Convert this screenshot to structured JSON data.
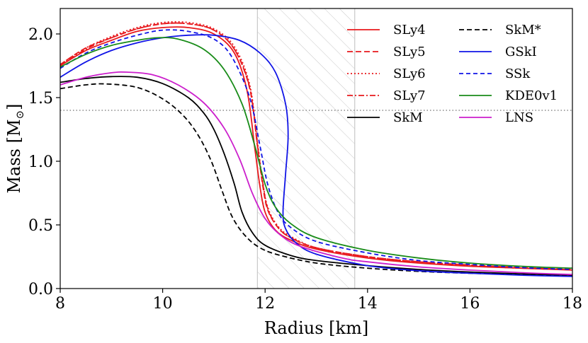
{
  "chart_data": {
    "type": "line",
    "xlabel": "Radius [km]",
    "ylabel": "Mass [M",
    "ylabel_sub": "⊙",
    "ylabel_close": "]",
    "xlim": [
      8,
      18
    ],
    "ylim": [
      0,
      2.2
    ],
    "xticks": [
      8,
      10,
      12,
      14,
      16,
      18
    ],
    "xtick_labels": [
      "8",
      "10",
      "12",
      "14",
      "16",
      "18"
    ],
    "yticks": [
      0,
      0.5,
      1.0,
      1.5,
      2.0
    ],
    "ytick_labels": [
      "0.0",
      "0.5",
      "1.0",
      "1.5",
      "2.0"
    ],
    "reference_line": {
      "y": 1.4,
      "color": "#888888",
      "style": "dotted"
    },
    "shaded_band": {
      "x": [
        11.85,
        13.75
      ],
      "hatch": "diagonal"
    },
    "legend_position": "top-right",
    "series": [
      {
        "name": "SLy4",
        "color": "#e8191d",
        "dash": "solid",
        "points": [
          [
            8,
            1.75
          ],
          [
            8.5,
            1.87
          ],
          [
            9,
            1.95
          ],
          [
            9.5,
            2.02
          ],
          [
            10,
            2.05
          ],
          [
            10.5,
            2.05
          ],
          [
            11,
            2.0
          ],
          [
            11.4,
            1.85
          ],
          [
            11.65,
            1.55
          ],
          [
            11.8,
            1.1
          ],
          [
            11.9,
            0.8
          ],
          [
            12.0,
            0.6
          ],
          [
            12.2,
            0.46
          ],
          [
            12.5,
            0.38
          ],
          [
            13,
            0.31
          ],
          [
            14,
            0.24
          ],
          [
            15,
            0.2
          ],
          [
            16,
            0.175
          ],
          [
            17,
            0.16
          ],
          [
            18,
            0.145
          ]
        ]
      },
      {
        "name": "SLy5",
        "color": "#e8191d",
        "dash": "8,4",
        "points": [
          [
            8,
            1.76
          ],
          [
            8.5,
            1.89
          ],
          [
            9,
            1.97
          ],
          [
            9.5,
            2.04
          ],
          [
            10,
            2.08
          ],
          [
            10.5,
            2.08
          ],
          [
            11,
            2.03
          ],
          [
            11.4,
            1.88
          ],
          [
            11.7,
            1.57
          ],
          [
            11.85,
            1.12
          ],
          [
            11.95,
            0.82
          ],
          [
            12.05,
            0.62
          ],
          [
            12.25,
            0.48
          ],
          [
            12.5,
            0.4
          ],
          [
            13,
            0.32
          ],
          [
            14,
            0.25
          ],
          [
            15,
            0.21
          ],
          [
            16,
            0.185
          ],
          [
            17,
            0.165
          ],
          [
            18,
            0.15
          ]
        ]
      },
      {
        "name": "SLy6",
        "color": "#e8191d",
        "dash": "2,3",
        "points": [
          [
            8,
            1.76
          ],
          [
            8.5,
            1.89
          ],
          [
            9,
            1.98
          ],
          [
            9.5,
            2.05
          ],
          [
            10,
            2.09
          ],
          [
            10.5,
            2.09
          ],
          [
            11,
            2.04
          ],
          [
            11.4,
            1.9
          ],
          [
            11.7,
            1.6
          ],
          [
            11.85,
            1.15
          ],
          [
            11.95,
            0.85
          ],
          [
            12.05,
            0.64
          ],
          [
            12.25,
            0.49
          ],
          [
            12.5,
            0.41
          ],
          [
            13,
            0.32
          ],
          [
            14,
            0.25
          ],
          [
            15,
            0.21
          ],
          [
            16,
            0.18
          ],
          [
            17,
            0.16
          ],
          [
            18,
            0.15
          ]
        ]
      },
      {
        "name": "SLy7",
        "color": "#e8191d",
        "dash": "8,3,2,3",
        "points": [
          [
            8,
            1.75
          ],
          [
            8.5,
            1.88
          ],
          [
            9,
            1.97
          ],
          [
            9.5,
            2.04
          ],
          [
            10,
            2.08
          ],
          [
            10.5,
            2.08
          ],
          [
            11,
            2.03
          ],
          [
            11.4,
            1.88
          ],
          [
            11.7,
            1.58
          ],
          [
            11.85,
            1.13
          ],
          [
            11.95,
            0.84
          ],
          [
            12.05,
            0.63
          ],
          [
            12.25,
            0.48
          ],
          [
            12.5,
            0.4
          ],
          [
            13,
            0.32
          ],
          [
            14,
            0.25
          ],
          [
            15,
            0.21
          ],
          [
            16,
            0.18
          ],
          [
            17,
            0.16
          ],
          [
            18,
            0.148
          ]
        ]
      },
      {
        "name": "SkM",
        "color": "#000000",
        "dash": "solid",
        "points": [
          [
            8,
            1.62
          ],
          [
            8.5,
            1.65
          ],
          [
            9,
            1.665
          ],
          [
            9.5,
            1.66
          ],
          [
            10,
            1.61
          ],
          [
            10.5,
            1.5
          ],
          [
            10.8,
            1.38
          ],
          [
            11,
            1.25
          ],
          [
            11.2,
            1.06
          ],
          [
            11.4,
            0.82
          ],
          [
            11.55,
            0.6
          ],
          [
            11.75,
            0.44
          ],
          [
            12,
            0.34
          ],
          [
            12.5,
            0.26
          ],
          [
            13,
            0.22
          ],
          [
            14,
            0.18
          ],
          [
            15,
            0.15
          ],
          [
            16,
            0.13
          ],
          [
            17,
            0.115
          ],
          [
            18,
            0.105
          ]
        ]
      },
      {
        "name": "SkM*",
        "color": "#000000",
        "dash": "7,4",
        "points": [
          [
            8,
            1.57
          ],
          [
            8.5,
            1.6
          ],
          [
            8.9,
            1.607
          ],
          [
            9.5,
            1.58
          ],
          [
            10,
            1.49
          ],
          [
            10.4,
            1.36
          ],
          [
            10.7,
            1.2
          ],
          [
            10.95,
            1.0
          ],
          [
            11.15,
            0.78
          ],
          [
            11.35,
            0.57
          ],
          [
            11.6,
            0.42
          ],
          [
            11.9,
            0.32
          ],
          [
            12.3,
            0.26
          ],
          [
            13,
            0.2
          ],
          [
            14,
            0.16
          ],
          [
            15,
            0.135
          ],
          [
            16,
            0.12
          ],
          [
            17,
            0.11
          ],
          [
            18,
            0.1
          ]
        ]
      },
      {
        "name": "GSkI",
        "color": "#1014e6",
        "dash": "solid",
        "points": [
          [
            8,
            1.66
          ],
          [
            8.5,
            1.78
          ],
          [
            9,
            1.87
          ],
          [
            9.5,
            1.93
          ],
          [
            10,
            1.97
          ],
          [
            10.5,
            1.99
          ],
          [
            11,
            1.99
          ],
          [
            11.5,
            1.95
          ],
          [
            11.9,
            1.85
          ],
          [
            12.2,
            1.7
          ],
          [
            12.4,
            1.45
          ],
          [
            12.45,
            1.2
          ],
          [
            12.4,
            0.9
          ],
          [
            12.35,
            0.6
          ],
          [
            12.4,
            0.47
          ],
          [
            12.6,
            0.36
          ],
          [
            13,
            0.27
          ],
          [
            14,
            0.18
          ],
          [
            15,
            0.14
          ],
          [
            16,
            0.12
          ],
          [
            17,
            0.105
          ],
          [
            18,
            0.095
          ]
        ]
      },
      {
        "name": "SSk",
        "color": "#1014e6",
        "dash": "6,4",
        "points": [
          [
            8,
            1.73
          ],
          [
            8.5,
            1.85
          ],
          [
            9,
            1.93
          ],
          [
            9.5,
            1.99
          ],
          [
            10,
            2.03
          ],
          [
            10.5,
            2.02
          ],
          [
            11,
            1.96
          ],
          [
            11.35,
            1.82
          ],
          [
            11.7,
            1.5
          ],
          [
            11.9,
            1.12
          ],
          [
            12.05,
            0.82
          ],
          [
            12.25,
            0.6
          ],
          [
            12.5,
            0.48
          ],
          [
            13,
            0.37
          ],
          [
            14,
            0.28
          ],
          [
            15,
            0.22
          ],
          [
            16,
            0.19
          ],
          [
            17,
            0.165
          ],
          [
            18,
            0.15
          ]
        ]
      },
      {
        "name": "KDE0v1",
        "color": "#198c19",
        "dash": "solid",
        "points": [
          [
            8,
            1.74
          ],
          [
            8.5,
            1.84
          ],
          [
            9,
            1.91
          ],
          [
            9.5,
            1.95
          ],
          [
            9.9,
            1.97
          ],
          [
            10.3,
            1.96
          ],
          [
            10.8,
            1.88
          ],
          [
            11.2,
            1.72
          ],
          [
            11.55,
            1.45
          ],
          [
            11.8,
            1.12
          ],
          [
            12.0,
            0.82
          ],
          [
            12.2,
            0.64
          ],
          [
            12.5,
            0.51
          ],
          [
            13,
            0.4
          ],
          [
            14,
            0.3
          ],
          [
            15,
            0.24
          ],
          [
            16,
            0.2
          ],
          [
            17,
            0.175
          ],
          [
            18,
            0.16
          ]
        ]
      },
      {
        "name": "LNS",
        "color": "#cc1fcc",
        "dash": "solid",
        "points": [
          [
            8,
            1.6
          ],
          [
            8.5,
            1.66
          ],
          [
            9,
            1.695
          ],
          [
            9.3,
            1.7
          ],
          [
            9.8,
            1.68
          ],
          [
            10.3,
            1.6
          ],
          [
            10.8,
            1.46
          ],
          [
            11.2,
            1.26
          ],
          [
            11.5,
            1.02
          ],
          [
            11.75,
            0.75
          ],
          [
            12.0,
            0.55
          ],
          [
            12.3,
            0.42
          ],
          [
            12.7,
            0.33
          ],
          [
            13.5,
            0.24
          ],
          [
            14,
            0.21
          ],
          [
            15,
            0.17
          ],
          [
            16,
            0.145
          ],
          [
            17,
            0.125
          ],
          [
            18,
            0.11
          ]
        ]
      }
    ]
  }
}
